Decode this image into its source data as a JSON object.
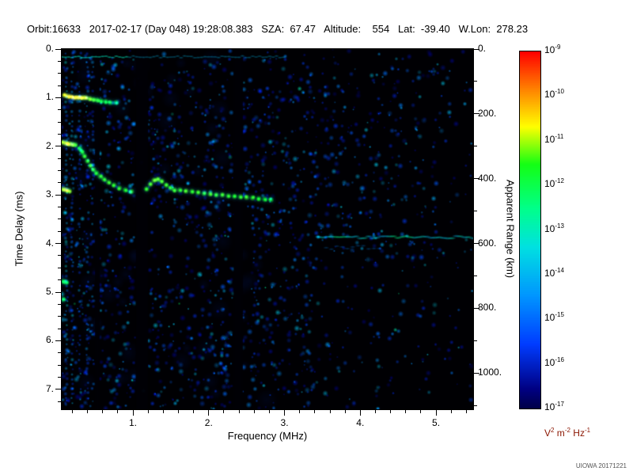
{
  "header": {
    "line": "Orbit:16633   2017-02-17 (Day 048) 19:28:08.383   SZA:  67.47   Altitude:    554   Lat:  -39.40   W.Lon:  278.23"
  },
  "credit": "UIOWA 20171221",
  "chart_data": {
    "type": "heatmap",
    "subtype": "radar-sounder-ionogram",
    "xlabel": "Frequency (MHz)",
    "ylabel_left": "Time Delay (ms)",
    "ylabel_right": "Apparent Range (km)",
    "xlim": [
      0.06,
      5.49
    ],
    "ylim_ms": [
      0.0,
      7.41
    ],
    "y_direction": "delay increases downward",
    "x_ticks": {
      "values": [
        1,
        2,
        3,
        4,
        5
      ],
      "labels": [
        "1.",
        "2.",
        "3.",
        "4.",
        "5."
      ],
      "minor_step": 0.2
    },
    "y_ticks_left": {
      "values": [
        0,
        1,
        2,
        3,
        4,
        5,
        6,
        7
      ],
      "labels": [
        "0.",
        "1.",
        "2.",
        "3.",
        "4.",
        "5.",
        "6.",
        "7."
      ],
      "minor_step": 0.25
    },
    "y_ticks_right": {
      "values_km": [
        0,
        200,
        400,
        600,
        800,
        1000
      ],
      "labels": [
        "0.",
        "200.",
        "400.",
        "600.",
        "800.",
        "1000."
      ],
      "minor_step_km": 100,
      "km_per_ms": 150
    },
    "colorbar": {
      "scale": "log",
      "max": "1e-9",
      "min": "1e-17",
      "exponents": [
        -9,
        -10,
        -11,
        -12,
        -13,
        -14,
        -15,
        -16,
        -17
      ],
      "unit_parts": [
        {
          "base": "V",
          "exp": "2"
        },
        {
          "base": "m",
          "exp": "-2"
        },
        {
          "base": "Hz",
          "exp": "-1"
        }
      ],
      "unit_color": "#8b1500"
    },
    "features": {
      "noise": {
        "seed": 13,
        "count": 2800,
        "description": "blue speckle noise, dense below 2.5 MHz, sparser toward high frequency and lower right"
      },
      "rfi_dark_bands": [
        [
          0.5,
          0.56
        ],
        [
          1.04,
          1.2
        ],
        [
          2.33,
          2.45
        ]
      ],
      "vertical_stripes": [
        {
          "f": 0.12,
          "density": 0.8,
          "vmax": 0.5
        },
        {
          "f": 0.2,
          "density": 0.7,
          "vmax": 0.45
        },
        {
          "f": 0.3,
          "density": 0.65,
          "vmax": 0.45
        },
        {
          "f": 0.4,
          "density": 0.6,
          "vmax": 0.4
        },
        {
          "f": 0.47,
          "density": 0.5,
          "vmax": 0.4
        },
        {
          "f": 3.77,
          "density": 0.3,
          "vmax": 0.35,
          "t0": 1.3,
          "t1": 5.2
        }
      ],
      "top_noise_line": {
        "t": 0.16,
        "f_start": 0.06,
        "f_end": 3.0,
        "intensity": 0.5
      },
      "surface_reflection_line": {
        "t": 3.87,
        "f_start": 3.45,
        "f_end": 5.49,
        "intensity": 0.5,
        "bright_spots": [
          3.75,
          4.55
        ]
      },
      "surface_reflection_secondary": {
        "t": 4.08,
        "f_start": 3.55,
        "f_end": 4.25,
        "intensity": 0.28
      },
      "echo_segments": [
        [
          [
            0.1,
            0.95,
            0.85
          ],
          [
            0.14,
            0.97,
            0.95
          ],
          [
            0.18,
            0.98,
            1.0
          ],
          [
            0.22,
            1.0,
            1.0
          ],
          [
            0.26,
            1.0,
            0.95
          ],
          [
            0.3,
            1.0,
            0.9
          ],
          [
            0.34,
            1.0,
            0.85
          ],
          [
            0.38,
            1.0,
            0.8
          ],
          [
            0.43,
            1.02,
            0.7
          ],
          [
            0.48,
            1.04,
            0.62
          ],
          [
            0.53,
            1.05,
            0.58
          ],
          [
            0.58,
            1.07,
            0.52
          ],
          [
            0.64,
            1.08,
            0.46
          ],
          [
            0.7,
            1.1,
            0.4
          ],
          [
            0.78,
            1.1,
            0.34
          ]
        ],
        [
          [
            0.3,
            2.05,
            0.5
          ],
          [
            0.33,
            2.12,
            0.55
          ],
          [
            0.36,
            2.2,
            0.58
          ],
          [
            0.4,
            2.3,
            0.58
          ],
          [
            0.44,
            2.4,
            0.6
          ],
          [
            0.48,
            2.48,
            0.58
          ],
          [
            0.52,
            2.55,
            0.56
          ],
          [
            0.57,
            2.62,
            0.58
          ],
          [
            0.62,
            2.68,
            0.58
          ],
          [
            0.68,
            2.74,
            0.6
          ],
          [
            0.75,
            2.8,
            0.58
          ],
          [
            0.82,
            2.86,
            0.58
          ],
          [
            0.9,
            2.9,
            0.56
          ],
          [
            0.98,
            2.93,
            0.58
          ]
        ],
        [
          [
            1.18,
            2.88,
            0.58
          ],
          [
            1.23,
            2.78,
            0.62
          ],
          [
            1.28,
            2.7,
            0.66
          ],
          [
            1.33,
            2.68,
            0.64
          ],
          [
            1.38,
            2.72,
            0.62
          ],
          [
            1.44,
            2.8,
            0.6
          ],
          [
            1.5,
            2.86,
            0.58
          ]
        ],
        [
          [
            1.55,
            2.9,
            0.6
          ],
          [
            1.62,
            2.9,
            0.58
          ],
          [
            1.7,
            2.92,
            0.62
          ],
          [
            1.78,
            2.93,
            0.58
          ],
          [
            1.86,
            2.95,
            0.6
          ],
          [
            1.94,
            2.97,
            0.58
          ],
          [
            2.02,
            2.98,
            0.61
          ],
          [
            2.1,
            3.0,
            0.58
          ],
          [
            2.18,
            3.0,
            0.6
          ],
          [
            2.26,
            3.02,
            0.58
          ],
          [
            2.34,
            3.03,
            0.56
          ],
          [
            2.42,
            3.04,
            0.58
          ],
          [
            2.5,
            3.05,
            0.6
          ],
          [
            2.58,
            3.06,
            0.58
          ],
          [
            2.66,
            3.08,
            0.55
          ],
          [
            2.74,
            3.09,
            0.52
          ],
          [
            2.82,
            3.1,
            0.48
          ]
        ]
      ],
      "harmonic_marks": [
        [
          [
            0.08,
            1.92,
            0.75
          ],
          [
            0.12,
            1.94,
            0.85
          ],
          [
            0.16,
            1.95,
            0.8
          ],
          [
            0.2,
            1.96,
            0.72
          ],
          [
            0.24,
            1.97,
            0.6
          ]
        ],
        [
          [
            0.08,
            2.88,
            0.75
          ],
          [
            0.12,
            2.9,
            0.82
          ],
          [
            0.16,
            2.92,
            0.72
          ]
        ],
        [
          [
            0.08,
            4.78,
            0.45
          ],
          [
            0.12,
            4.8,
            0.4
          ]
        ],
        [
          [
            0.08,
            5.15,
            0.35
          ]
        ]
      ]
    }
  }
}
